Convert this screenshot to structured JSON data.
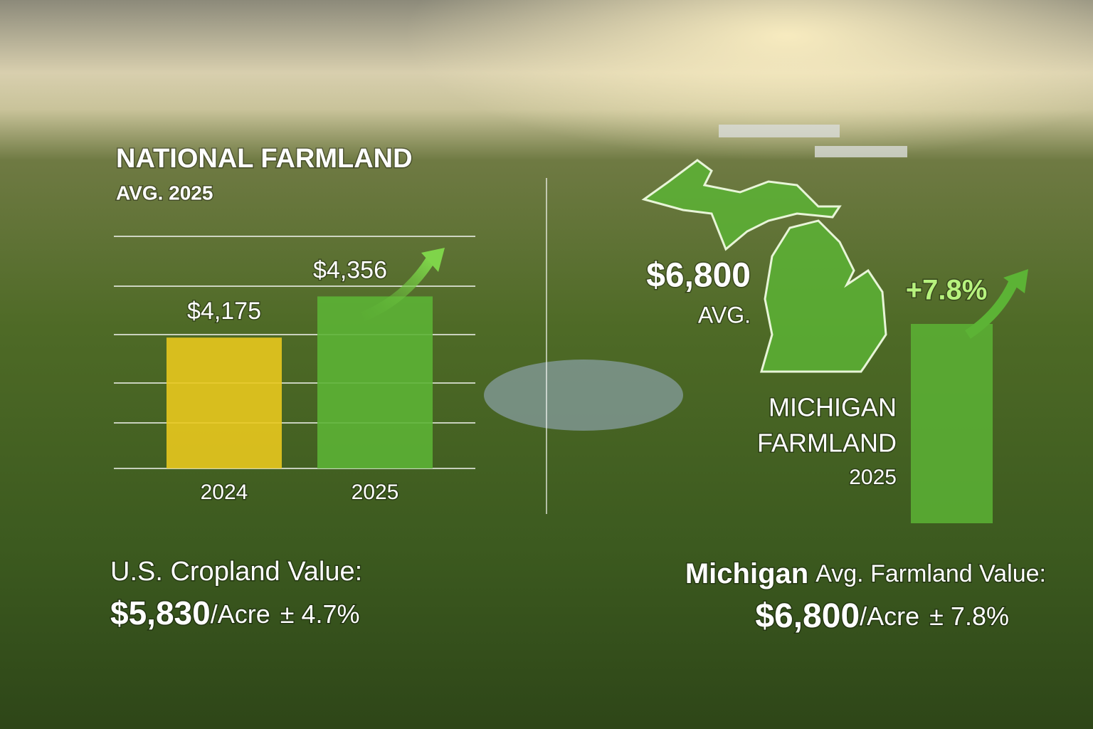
{
  "chart_data": {
    "type": "bar",
    "title": "NATIONAL FARMLAND",
    "subtitle": "AVG. 2025",
    "categories": [
      "2024",
      "2025"
    ],
    "values": [
      4175,
      4356
    ],
    "value_labels": [
      "$4,175",
      "$4,356"
    ],
    "colors": [
      "#e8c81e",
      "#5cb335"
    ],
    "ylim": [
      3600,
      4620
    ],
    "grid": true
  },
  "michigan": {
    "value": "$6,800",
    "avg": "AVG.",
    "change": "+7.8%",
    "label": [
      "MICHIGAN",
      "FARMLAND",
      "2025"
    ]
  },
  "footer_left": {
    "line1": "U.S. Cropland Value:",
    "amount": "$5,830",
    "unit": "/Acre",
    "change": "± 4.7%"
  },
  "footer_right": {
    "bold": "Michigan",
    "line1": "Avg. Farmland Value:",
    "amount": "$6,800",
    "unit": "/Acre",
    "change": "± 7.8%"
  }
}
